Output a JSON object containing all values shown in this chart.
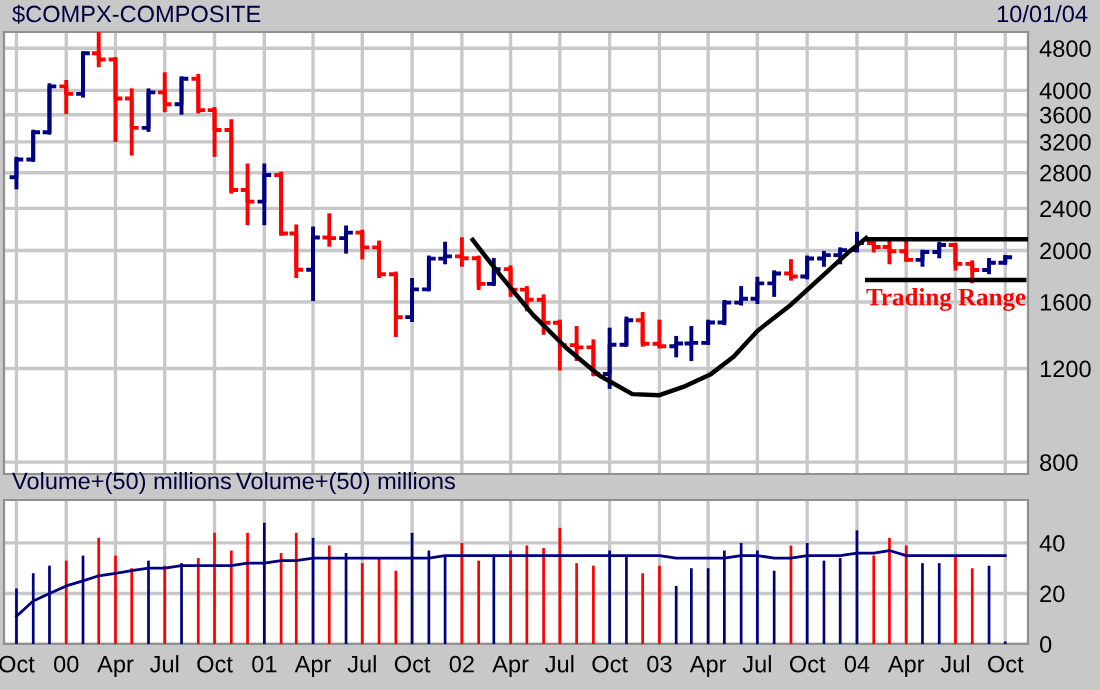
{
  "chart_data": [
    {
      "type": "candlestick",
      "title": "$COMPX-COMPOSITE",
      "annotations": [
        "10/01/04",
        "Trading Range"
      ],
      "x": [
        "1999-10",
        "1999-11",
        "1999-12",
        "2000-01",
        "2000-02",
        "2000-03",
        "2000-04",
        "2000-05",
        "2000-06",
        "2000-07",
        "2000-08",
        "2000-09",
        "2000-10",
        "2000-11",
        "2000-12",
        "2001-01",
        "2001-02",
        "2001-03",
        "2001-04",
        "2001-05",
        "2001-06",
        "2001-07",
        "2001-08",
        "2001-09",
        "2001-10",
        "2001-11",
        "2001-12",
        "2002-01",
        "2002-02",
        "2002-03",
        "2002-04",
        "2002-05",
        "2002-06",
        "2002-07",
        "2002-08",
        "2002-09",
        "2002-10",
        "2002-11",
        "2002-12",
        "2003-01",
        "2003-02",
        "2003-03",
        "2003-04",
        "2003-05",
        "2003-06",
        "2003-07",
        "2003-08",
        "2003-09",
        "2003-10",
        "2003-11",
        "2003-12",
        "2004-01",
        "2004-02",
        "2004-03",
        "2004-04",
        "2004-05",
        "2004-06",
        "2004-07",
        "2004-08",
        "2004-09",
        "2004-10"
      ],
      "ohlc": [
        [
          2746,
          2975,
          2628,
          2966
        ],
        [
          2966,
          3346,
          2960,
          3336
        ],
        [
          3336,
          4090,
          3330,
          4069
        ],
        [
          4069,
          4150,
          3640,
          3940
        ],
        [
          3940,
          4697,
          3910,
          4697
        ],
        [
          4697,
          5132,
          4460,
          4573
        ],
        [
          4573,
          4580,
          3227,
          3861
        ],
        [
          3861,
          4000,
          3042,
          3401
        ],
        [
          3401,
          4000,
          3370,
          3966
        ],
        [
          3966,
          4290,
          3670,
          3767
        ],
        [
          3767,
          4215,
          3630,
          4206
        ],
        [
          4206,
          4260,
          3650,
          3673
        ],
        [
          3673,
          3690,
          3025,
          3370
        ],
        [
          3370,
          3500,
          2580,
          2598
        ],
        [
          2598,
          2890,
          2250,
          2471
        ],
        [
          2471,
          2890,
          2250,
          2773
        ],
        [
          2773,
          2790,
          2150,
          2152
        ],
        [
          2152,
          2220,
          1790,
          1840
        ],
        [
          1840,
          2200,
          1620,
          2116
        ],
        [
          2116,
          2330,
          2050,
          2110
        ],
        [
          2110,
          2210,
          1990,
          2161
        ],
        [
          2161,
          2170,
          1940,
          2027
        ],
        [
          2027,
          2070,
          1790,
          1805
        ],
        [
          1805,
          1810,
          1387,
          1499
        ],
        [
          1499,
          1760,
          1480,
          1690
        ],
        [
          1690,
          1940,
          1690,
          1931
        ],
        [
          1931,
          2060,
          1900,
          1950
        ],
        [
          1950,
          2100,
          1880,
          1934
        ],
        [
          1934,
          1940,
          1700,
          1731
        ],
        [
          1731,
          1920,
          1730,
          1845
        ],
        [
          1845,
          1860,
          1650,
          1688
        ],
        [
          1688,
          1700,
          1550,
          1616
        ],
        [
          1616,
          1640,
          1400,
          1463
        ],
        [
          1463,
          1470,
          1200,
          1328
        ],
        [
          1328,
          1430,
          1250,
          1315
        ],
        [
          1315,
          1350,
          1170,
          1172
        ],
        [
          1172,
          1420,
          1108,
          1330
        ],
        [
          1330,
          1490,
          1330,
          1479
        ],
        [
          1479,
          1520,
          1330,
          1336
        ],
        [
          1336,
          1470,
          1320,
          1321
        ],
        [
          1321,
          1370,
          1270,
          1337
        ],
        [
          1337,
          1430,
          1250,
          1341
        ],
        [
          1341,
          1470,
          1340,
          1464
        ],
        [
          1464,
          1600,
          1460,
          1596
        ],
        [
          1596,
          1700,
          1590,
          1623
        ],
        [
          1623,
          1770,
          1600,
          1735
        ],
        [
          1735,
          1820,
          1650,
          1810
        ],
        [
          1810,
          1910,
          1770,
          1787
        ],
        [
          1787,
          1940,
          1780,
          1932
        ],
        [
          1932,
          1980,
          1880,
          1960
        ],
        [
          1960,
          2010,
          1900,
          2003
        ],
        [
          2003,
          2150,
          2000,
          2066
        ],
        [
          2066,
          2100,
          2000,
          2030
        ],
        [
          2030,
          2080,
          1900,
          1994
        ],
        [
          1994,
          2080,
          1920,
          1920
        ],
        [
          1920,
          1990,
          1880,
          1987
        ],
        [
          1987,
          2060,
          1950,
          2048
        ],
        [
          2048,
          2050,
          1850,
          1887
        ],
        [
          1887,
          1900,
          1750,
          1838
        ],
        [
          1838,
          1920,
          1820,
          1897
        ],
        [
          1897,
          1945,
          1897,
          1942
        ]
      ],
      "colors": [
        "#000080",
        "#000080",
        "#000080",
        "#ff0000",
        "#000080",
        "#ff0000",
        "#ff0000",
        "#ff0000",
        "#000080",
        "#ff0000",
        "#000080",
        "#ff0000",
        "#ff0000",
        "#ff0000",
        "#ff0000",
        "#000080",
        "#ff0000",
        "#ff0000",
        "#000080",
        "#ff0000",
        "#000080",
        "#ff0000",
        "#ff0000",
        "#ff0000",
        "#000080",
        "#000080",
        "#000080",
        "#ff0000",
        "#ff0000",
        "#000080",
        "#ff0000",
        "#ff0000",
        "#ff0000",
        "#ff0000",
        "#ff0000",
        "#ff0000",
        "#000080",
        "#000080",
        "#ff0000",
        "#ff0000",
        "#000080",
        "#000080",
        "#000080",
        "#000080",
        "#000080",
        "#000080",
        "#000080",
        "#ff0000",
        "#000080",
        "#000080",
        "#000080",
        "#000080",
        "#ff0000",
        "#ff0000",
        "#ff0000",
        "#000080",
        "#000080",
        "#ff0000",
        "#ff0000",
        "#000080",
        "#000080"
      ],
      "series": [
        {
          "type": "line",
          "color": "#000000",
          "x": [
            "2002-01-21",
            "2002-03-12",
            "2002-05-12",
            "2002-07-12",
            "2002-09-12",
            "2002-11-12",
            "2003-01-01",
            "2003-02-18",
            "2003-04-06",
            "2003-05-18",
            "2003-07-01",
            "2003-09-01",
            "2003-11-01",
            "2003-12-18",
            "2004-01-18"
          ],
          "values": [
            2093,
            1801,
            1515,
            1314,
            1164,
            1074,
            1069,
            1112,
            1171,
            1262,
            1412,
            1582,
            1801,
            1992,
            2111
          ]
        },
        {
          "type": "line",
          "color": "#000000",
          "x": [
            "2004-01-18",
            "2004-11-12"
          ],
          "values": [
            2100,
            2100
          ]
        },
        {
          "type": "line",
          "color": "#000000",
          "x": [
            "2004-01-20",
            "2004-11-05"
          ],
          "values": [
            1760,
            1760
          ]
        }
      ],
      "log": true,
      "ylim": [
        760,
        5150
      ],
      "yticks": [
        800,
        1200,
        1600,
        2000,
        2400,
        2800,
        3200,
        3600,
        4000,
        4800
      ],
      "xlim": [
        "1999-09-08",
        "2004-11-12"
      ],
      "xticks": [
        {
          "value": "1999-10",
          "label": null
        },
        {
          "value": "2000-01",
          "label": null
        },
        {
          "value": "2000-04",
          "label": null
        },
        {
          "value": "2000-07",
          "label": null
        },
        {
          "value": "2000-10",
          "label": null
        },
        {
          "value": "2001-01",
          "label": null
        },
        {
          "value": "2001-04",
          "label": null
        },
        {
          "value": "2001-07",
          "label": null
        },
        {
          "value": "2001-10",
          "label": null
        },
        {
          "value": "2002-01",
          "label": null
        },
        {
          "value": "2002-04",
          "label": null
        },
        {
          "value": "2002-07",
          "label": null
        },
        {
          "value": "2002-10",
          "label": null
        },
        {
          "value": "2003-01",
          "label": null
        },
        {
          "value": "2003-04",
          "label": null
        },
        {
          "value": "2003-07",
          "label": null
        },
        {
          "value": "2003-10",
          "label": null
        },
        {
          "value": "2004-01",
          "label": null
        },
        {
          "value": "2004-04",
          "label": null
        },
        {
          "value": "2004-07",
          "label": null
        },
        {
          "value": "2004-10",
          "label": null
        }
      ],
      "grid": true,
      "tick_labels": "y"
    },
    {
      "type": "bar",
      "title": "Volume+(50) millions",
      "annotations": [
        "Volume+(50) millions"
      ],
      "x": [
        "1999-10",
        "1999-11",
        "1999-12",
        "2000-01",
        "2000-02",
        "2000-03",
        "2000-04",
        "2000-05",
        "2000-06",
        "2000-07",
        "2000-08",
        "2000-09",
        "2000-10",
        "2000-11",
        "2000-12",
        "2001-01",
        "2001-02",
        "2001-03",
        "2001-04",
        "2001-05",
        "2001-06",
        "2001-07",
        "2001-08",
        "2001-09",
        "2001-10",
        "2001-11",
        "2001-12",
        "2002-01",
        "2002-02",
        "2002-03",
        "2002-04",
        "2002-05",
        "2002-06",
        "2002-07",
        "2002-08",
        "2002-09",
        "2002-10",
        "2002-11",
        "2002-12",
        "2003-01",
        "2003-02",
        "2003-03",
        "2003-04",
        "2003-05",
        "2003-06",
        "2003-07",
        "2003-08",
        "2003-09",
        "2003-10",
        "2003-11",
        "2003-12",
        "2004-01",
        "2004-02",
        "2004-03",
        "2004-04",
        "2004-05",
        "2004-06",
        "2004-07",
        "2004-08",
        "2004-09",
        "2004-10"
      ],
      "series": [
        {
          "values": [
            22,
            28,
            31,
            33,
            35,
            42,
            35,
            30,
            33,
            31,
            32,
            34,
            44,
            37,
            44,
            48,
            36,
            44,
            42,
            39,
            36,
            32,
            34,
            29,
            44,
            37,
            35,
            40,
            33,
            35,
            37,
            39,
            38,
            46,
            32,
            31,
            37,
            35,
            28,
            31,
            23,
            30,
            30,
            37,
            40,
            37,
            29,
            39,
            40,
            33,
            34,
            45,
            35,
            42,
            39,
            32,
            32,
            35,
            30,
            31,
            1
          ],
          "colors": [
            "#000080",
            "#000080",
            "#000080",
            "#ff0000",
            "#000080",
            "#ff0000",
            "#ff0000",
            "#ff0000",
            "#000080",
            "#ff0000",
            "#000080",
            "#ff0000",
            "#ff0000",
            "#ff0000",
            "#ff0000",
            "#000080",
            "#ff0000",
            "#ff0000",
            "#000080",
            "#ff0000",
            "#000080",
            "#ff0000",
            "#ff0000",
            "#ff0000",
            "#000080",
            "#000080",
            "#000080",
            "#ff0000",
            "#ff0000",
            "#000080",
            "#ff0000",
            "#ff0000",
            "#ff0000",
            "#ff0000",
            "#ff0000",
            "#ff0000",
            "#000080",
            "#000080",
            "#ff0000",
            "#ff0000",
            "#000080",
            "#000080",
            "#000080",
            "#000080",
            "#000080",
            "#000080",
            "#000080",
            "#ff0000",
            "#000080",
            "#000080",
            "#000080",
            "#000080",
            "#ff0000",
            "#ff0000",
            "#ff0000",
            "#000080",
            "#000080",
            "#ff0000",
            "#ff0000",
            "#000080",
            "#000080"
          ]
        },
        {
          "type": "line",
          "color": "#000080",
          "values": [
            11,
            17,
            20,
            23,
            25,
            27,
            28,
            29,
            30,
            30,
            31,
            31,
            31,
            31,
            32,
            32,
            33,
            33,
            34,
            34,
            34,
            34,
            34,
            34,
            34,
            34,
            35,
            35,
            35,
            35,
            35,
            35,
            35,
            35,
            35,
            35,
            35,
            35,
            35,
            35,
            34,
            34,
            34,
            34,
            35,
            35,
            34,
            34,
            35,
            35,
            35,
            36,
            36,
            37,
            35,
            35,
            35,
            35,
            35,
            35,
            35
          ]
        }
      ],
      "ylim": [
        0,
        57
      ],
      "yticks": [
        0,
        20,
        40
      ],
      "xlim": [
        "1999-09-08",
        "2004-11-12"
      ],
      "xticks": [
        {
          "value": "1999-10",
          "label": "Oct"
        },
        {
          "value": "2000-01",
          "label": "00"
        },
        {
          "value": "2000-04",
          "label": "Apr"
        },
        {
          "value": "2000-07",
          "label": "Jul"
        },
        {
          "value": "2000-10",
          "label": "Oct"
        },
        {
          "value": "2001-01",
          "label": "01"
        },
        {
          "value": "2001-04",
          "label": "Apr"
        },
        {
          "value": "2001-07",
          "label": "Jul"
        },
        {
          "value": "2001-10",
          "label": "Oct"
        },
        {
          "value": "2002-01",
          "label": "02"
        },
        {
          "value": "2002-04",
          "label": "Apr"
        },
        {
          "value": "2002-07",
          "label": "Jul"
        },
        {
          "value": "2002-10",
          "label": "Oct"
        },
        {
          "value": "2003-01",
          "label": "03"
        },
        {
          "value": "2003-04",
          "label": "Apr"
        },
        {
          "value": "2003-07",
          "label": "Jul"
        },
        {
          "value": "2003-10",
          "label": "Oct"
        },
        {
          "value": "2004-01",
          "label": "04"
        },
        {
          "value": "2004-04",
          "label": "Apr"
        },
        {
          "value": "2004-07",
          "label": "Jul"
        },
        {
          "value": "2004-10",
          "label": "Oct"
        }
      ],
      "grid": true
    }
  ]
}
